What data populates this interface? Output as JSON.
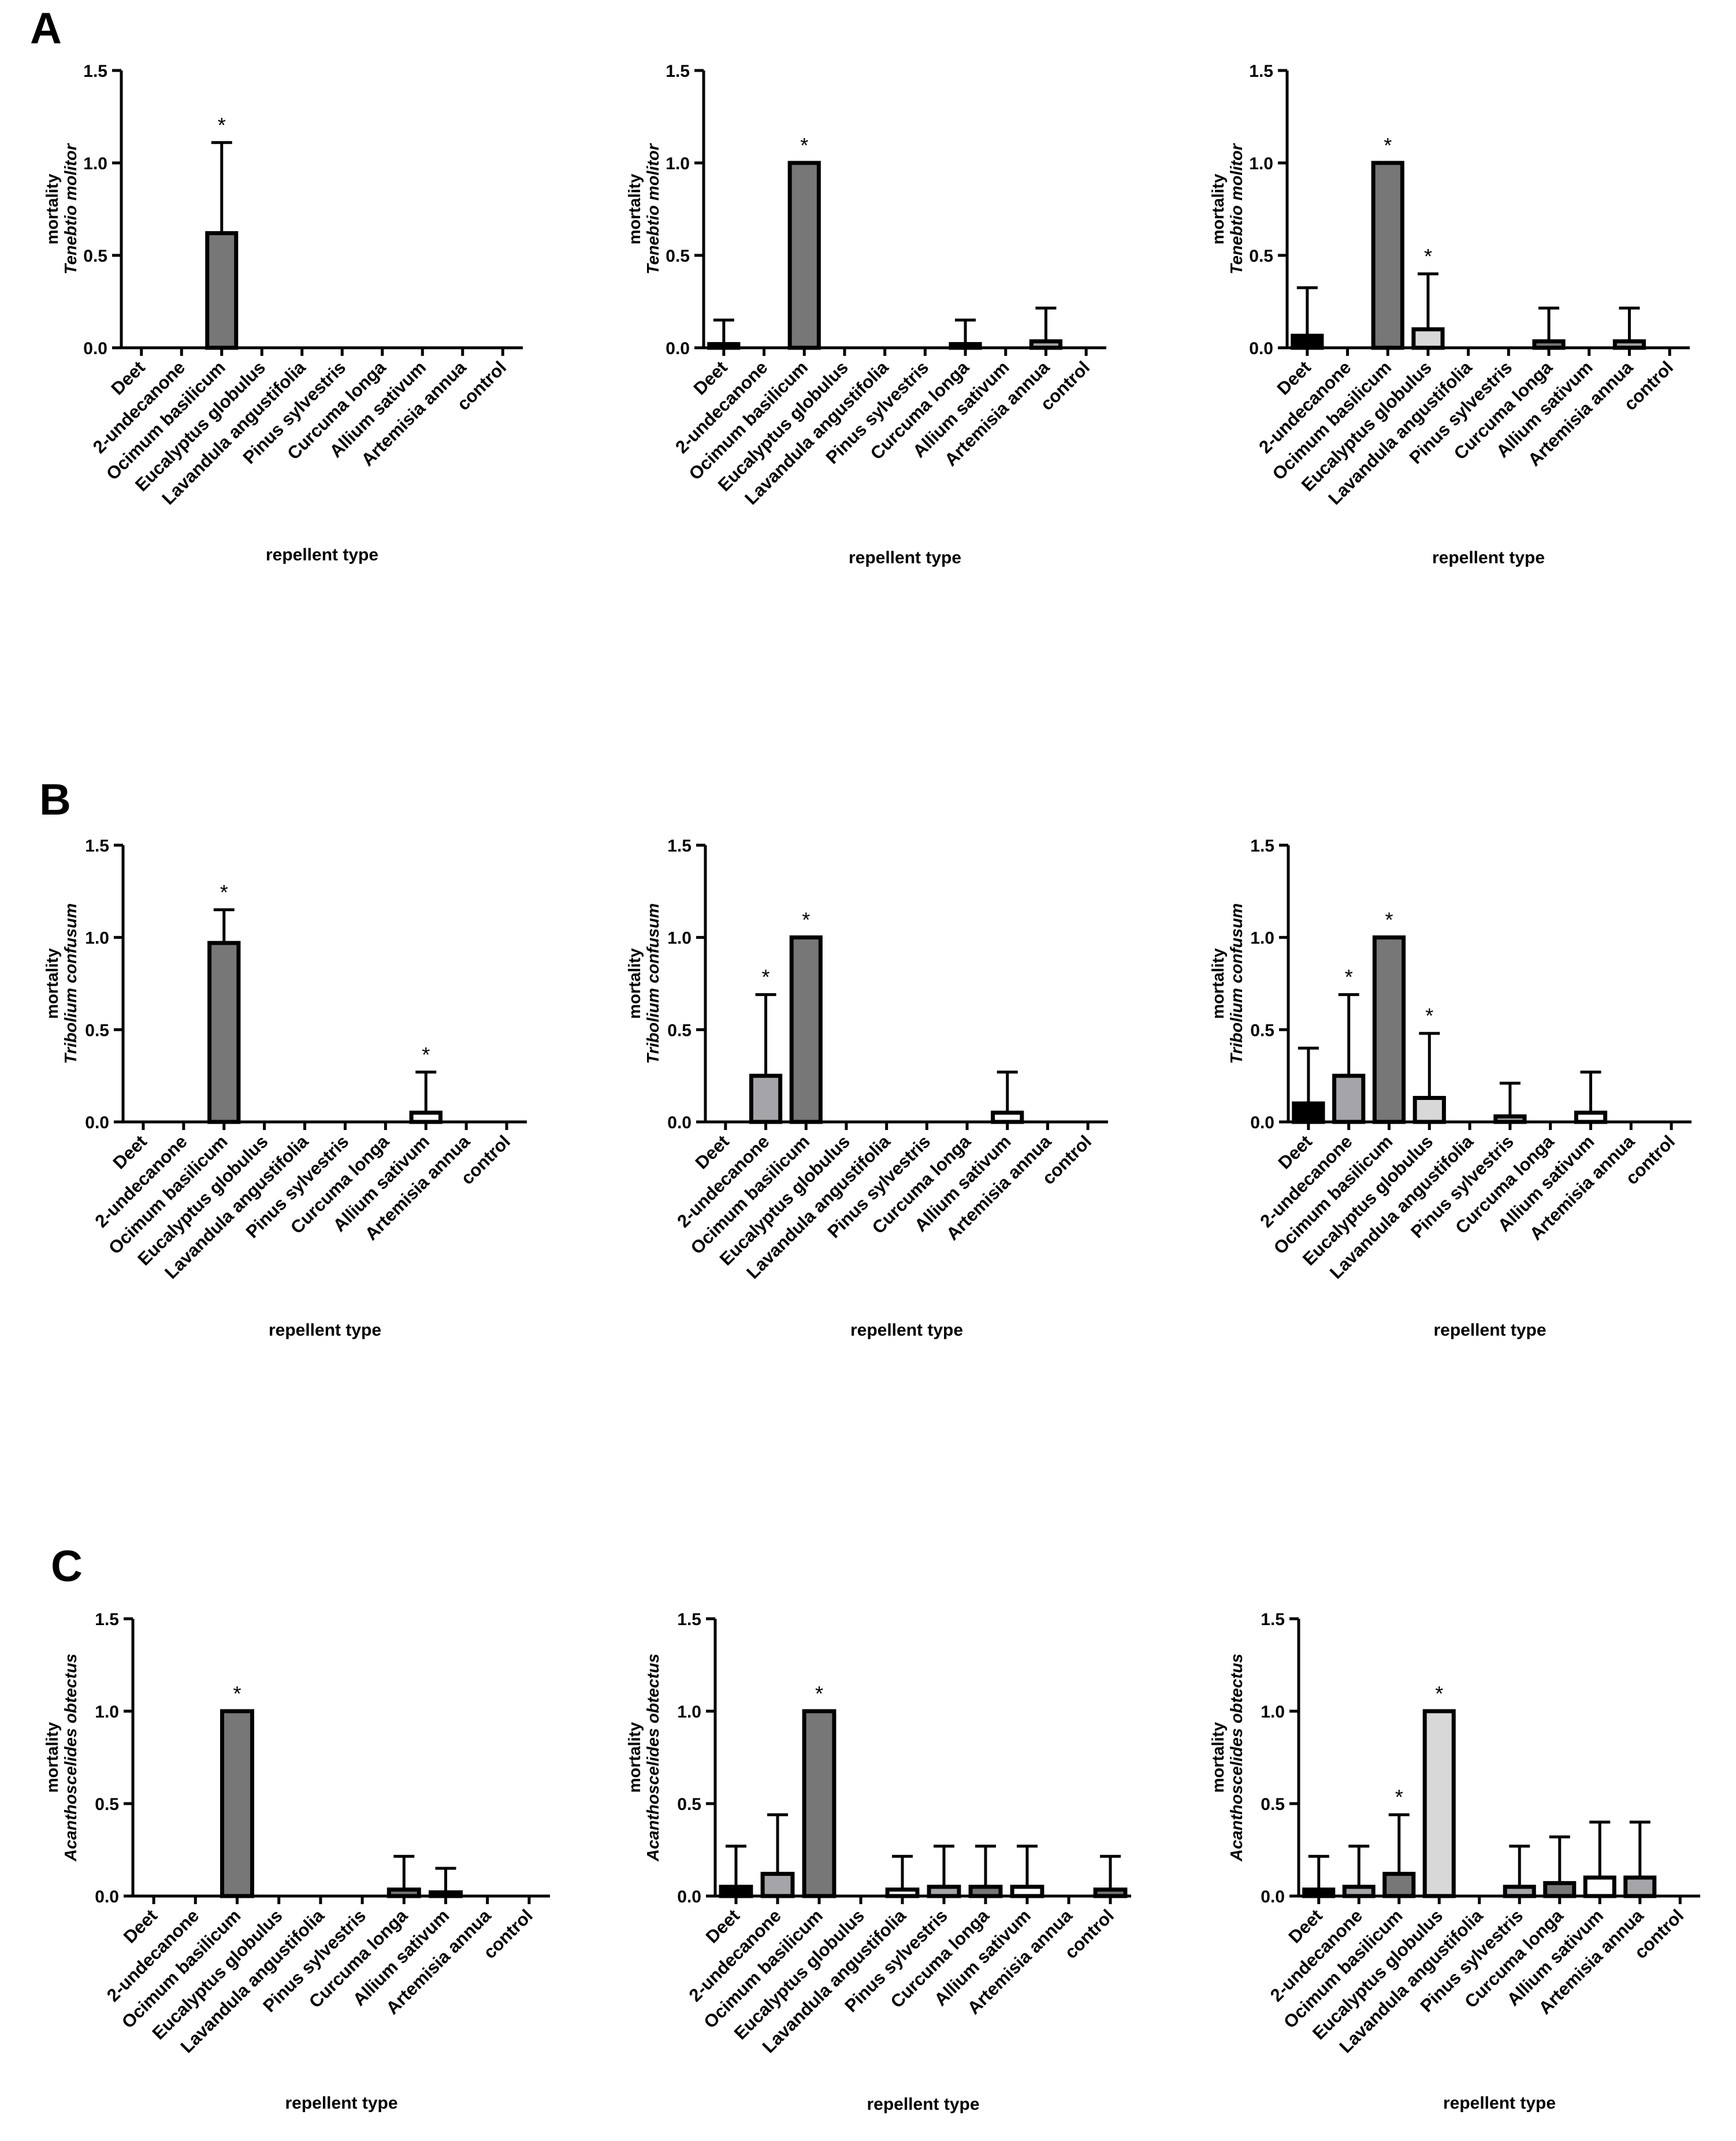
{
  "figure": {
    "panel_letters": [
      "A",
      "B",
      "C"
    ],
    "colors": {
      "Deet": "#000000",
      "2-undecanone": "#a5a5a9",
      "Ocimum basilicum": "#777777",
      "Eucalyptus globulus": "#d8d8d8",
      "Lavandula angustifolia": "#ffffff",
      "Pinus sylvestris": "#a5a5a9",
      "Curcuma longa": "#777777",
      "Allium sativum": "#ffffff",
      "Artemisia annua": "#a5a5a9",
      "control": "#777777"
    }
  },
  "chart_data": [
    {
      "type": "bar",
      "panel": "A",
      "column": 1,
      "categories": [
        "Deet",
        "2-undecanone",
        "Ocimum basilicum",
        "Eucalyptus globulus",
        "Lavandula angustifolia",
        "Pinus sylvestris",
        "Curcuma longa",
        "Allium sativum",
        "Artemisia annua",
        "control"
      ],
      "values": [
        0,
        0,
        0.62,
        0,
        0,
        0,
        0,
        0,
        0,
        0
      ],
      "errors": [
        0,
        0,
        0.49,
        0,
        0,
        0,
        0,
        0,
        0,
        0
      ],
      "significant": [
        false,
        false,
        true,
        false,
        false,
        false,
        false,
        false,
        false,
        false
      ],
      "yticks": [
        "0.0",
        "0.5",
        "1.0",
        "1.5"
      ],
      "ylim": [
        0,
        1.5
      ],
      "ylabel": "mortality",
      "ylabel_species": "Tenebtio molitor",
      "xlabel": "repellent type",
      "star": "*"
    },
    {
      "type": "bar",
      "panel": "A",
      "column": 2,
      "categories": [
        "Deet",
        "2-undecanone",
        "Ocimum basilicum",
        "Eucalyptus globulus",
        "Lavandula angustifolia",
        "Pinus sylvestris",
        "Curcuma longa",
        "Allium sativum",
        "Artemisia annua",
        "control"
      ],
      "values": [
        0.02,
        0,
        1.0,
        0,
        0,
        0,
        0.02,
        0,
        0.035,
        0
      ],
      "errors": [
        0.13,
        0,
        0,
        0,
        0,
        0,
        0.13,
        0,
        0.18,
        0
      ],
      "significant": [
        false,
        false,
        true,
        false,
        false,
        false,
        false,
        false,
        false,
        false
      ],
      "yticks": [
        "0.0",
        "0.5",
        "1.0",
        "1.5"
      ],
      "ylim": [
        0,
        1.5
      ],
      "ylabel": "mortality",
      "ylabel_species": "Tenebtio molitor",
      "xlabel": "repellent type",
      "star": "*"
    },
    {
      "type": "bar",
      "panel": "A",
      "column": 3,
      "categories": [
        "Deet",
        "2-undecanone",
        "Ocimum basilicum",
        "Eucalyptus globulus",
        "Lavandula angustifolia",
        "Pinus sylvestris",
        "Curcuma longa",
        "Allium sativum",
        "Artemisia annua",
        "control"
      ],
      "values": [
        0.065,
        0,
        1.0,
        0.1,
        0,
        0,
        0.035,
        0,
        0.035,
        0
      ],
      "errors": [
        0.26,
        0,
        0,
        0.3,
        0,
        0,
        0.18,
        0,
        0.18,
        0
      ],
      "significant": [
        false,
        false,
        true,
        true,
        false,
        false,
        false,
        false,
        false,
        false
      ],
      "yticks": [
        "0.0",
        "0.5",
        "1.0",
        "1.5"
      ],
      "ylim": [
        0,
        1.5
      ],
      "ylabel": "mortality",
      "ylabel_species": "Tenebtio molitor",
      "xlabel": "repellent type",
      "star": "*"
    },
    {
      "type": "bar",
      "panel": "B",
      "column": 1,
      "categories": [
        "Deet",
        "2-undecanone",
        "Ocimum basilicum",
        "Eucalyptus globulus",
        "Lavandula angustifolia",
        "Pinus sylvestris",
        "Curcuma longa",
        "Allium sativum",
        "Artemisia annua",
        "control"
      ],
      "values": [
        0,
        0,
        0.97,
        0,
        0,
        0,
        0,
        0.05,
        0,
        0
      ],
      "errors": [
        0,
        0,
        0.18,
        0,
        0,
        0,
        0,
        0.22,
        0,
        0
      ],
      "significant": [
        false,
        false,
        true,
        false,
        false,
        false,
        false,
        true,
        false,
        false
      ],
      "yticks": [
        "0.0",
        "0.5",
        "1.0",
        "1.5"
      ],
      "ylim": [
        0,
        1.5
      ],
      "ylabel": "mortality",
      "ylabel_species": "Tribolium confusum",
      "xlabel": "repellent type",
      "star": "*"
    },
    {
      "type": "bar",
      "panel": "B",
      "column": 2,
      "categories": [
        "Deet",
        "2-undecanone",
        "Ocimum basilicum",
        "Eucalyptus globulus",
        "Lavandula angustifolia",
        "Pinus sylvestris",
        "Curcuma longa",
        "Allium sativum",
        "Artemisia annua",
        "control"
      ],
      "values": [
        0,
        0.25,
        1.0,
        0,
        0,
        0,
        0,
        0.05,
        0,
        0
      ],
      "errors": [
        0,
        0.44,
        0,
        0,
        0,
        0,
        0,
        0.22,
        0,
        0
      ],
      "significant": [
        false,
        true,
        true,
        false,
        false,
        false,
        false,
        false,
        false,
        false
      ],
      "yticks": [
        "0.0",
        "0.5",
        "1.0",
        "1.5"
      ],
      "ylim": [
        0,
        1.5
      ],
      "ylabel": "mortality",
      "ylabel_species": "Tribolium confusum",
      "xlabel": "repellent type",
      "star": "*"
    },
    {
      "type": "bar",
      "panel": "B",
      "column": 3,
      "categories": [
        "Deet",
        "2-undecanone",
        "Ocimum basilicum",
        "Eucalyptus globulus",
        "Lavandula angustifolia",
        "Pinus sylvestris",
        "Curcuma longa",
        "Allium sativum",
        "Artemisia annua",
        "control"
      ],
      "values": [
        0.1,
        0.25,
        1.0,
        0.13,
        0,
        0.03,
        0,
        0.05,
        0,
        0
      ],
      "errors": [
        0.3,
        0.44,
        0,
        0.35,
        0,
        0.18,
        0,
        0.22,
        0,
        0
      ],
      "significant": [
        false,
        true,
        true,
        true,
        false,
        false,
        false,
        false,
        false,
        false
      ],
      "yticks": [
        "0.0",
        "0.5",
        "1.0",
        "1.5"
      ],
      "ylim": [
        0,
        1.5
      ],
      "ylabel": "mortality",
      "ylabel_species": "Tribolium confusum",
      "xlabel": "repellent type",
      "star": "*"
    },
    {
      "type": "bar",
      "panel": "C",
      "column": 1,
      "categories": [
        "Deet",
        "2-undecanone",
        "Ocimum basilicum",
        "Eucalyptus globulus",
        "Lavandula angustifolia",
        "Pinus sylvestris",
        "Curcuma longa",
        "Allium sativum",
        "Artemisia annua",
        "control"
      ],
      "values": [
        0,
        0,
        1.0,
        0,
        0,
        0,
        0.035,
        0.02,
        0,
        0
      ],
      "errors": [
        0,
        0,
        0,
        0,
        0,
        0,
        0.18,
        0.13,
        0,
        0
      ],
      "significant": [
        false,
        false,
        true,
        false,
        false,
        false,
        false,
        false,
        false,
        false
      ],
      "yticks": [
        "0.0",
        "0.5",
        "1.0",
        "1.5"
      ],
      "ylim": [
        0,
        1.5
      ],
      "ylabel": "mortality",
      "ylabel_species": "Acanthoscelides obtectus",
      "xlabel": "repellent type",
      "star": "*"
    },
    {
      "type": "bar",
      "panel": "C",
      "column": 2,
      "categories": [
        "Deet",
        "2-undecanone",
        "Ocimum basilicum",
        "Eucalyptus globulus",
        "Lavandula angustifolia",
        "Pinus sylvestris",
        "Curcuma longa",
        "Allium sativum",
        "Artemisia annua",
        "control"
      ],
      "values": [
        0.05,
        0.12,
        1.0,
        0,
        0.035,
        0.05,
        0.05,
        0.05,
        0,
        0.035
      ],
      "errors": [
        0.22,
        0.32,
        0,
        0,
        0.18,
        0.22,
        0.22,
        0.22,
        0,
        0.18
      ],
      "significant": [
        false,
        false,
        true,
        false,
        false,
        false,
        false,
        false,
        false,
        false
      ],
      "yticks": [
        "0.0",
        "0.5",
        "1.0",
        "1.5"
      ],
      "ylim": [
        0,
        1.5
      ],
      "ylabel": "mortality",
      "ylabel_species": "Acanthoscelides obtectus",
      "xlabel": "repellent type",
      "star": "*"
    },
    {
      "type": "bar",
      "panel": "C",
      "column": 3,
      "categories": [
        "Deet",
        "2-undecanone",
        "Ocimum basilicum",
        "Eucalyptus globulus",
        "Lavandula angustifolia",
        "Pinus sylvestris",
        "Curcuma longa",
        "Allium sativum",
        "Artemisia annua",
        "control"
      ],
      "values": [
        0.035,
        0.05,
        0.12,
        1.0,
        0,
        0.05,
        0.07,
        0.1,
        0.1,
        0
      ],
      "errors": [
        0.18,
        0.22,
        0.32,
        0,
        0,
        0.22,
        0.25,
        0.3,
        0.3,
        0
      ],
      "significant": [
        false,
        false,
        true,
        true,
        false,
        false,
        false,
        false,
        false,
        false
      ],
      "yticks": [
        "0.0",
        "0.5",
        "1.0",
        "1.5"
      ],
      "ylim": [
        0,
        1.5
      ],
      "ylabel": "mortality",
      "ylabel_species": "Acanthoscelides obtectus",
      "xlabel": "repellent type",
      "star": "*"
    }
  ]
}
